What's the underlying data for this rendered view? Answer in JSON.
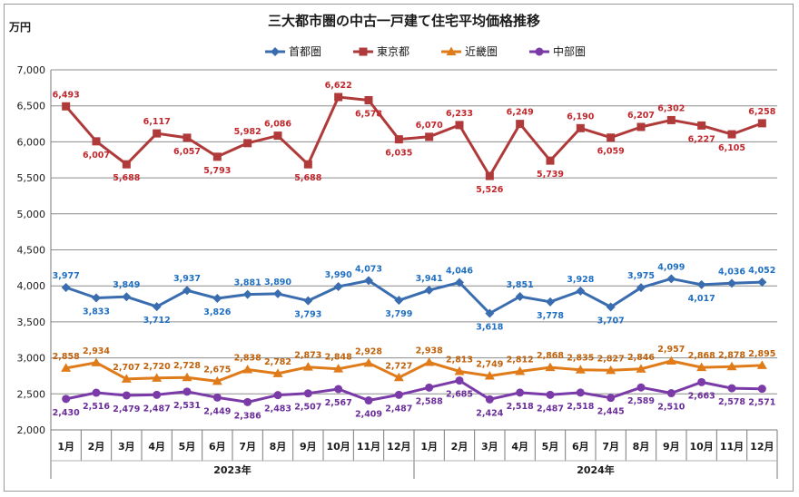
{
  "chart_data": {
    "type": "line",
    "title": "三大都市圏の中古一戸建て住宅平均価格推移",
    "ylabel": "万円",
    "ylim": [
      2000,
      7000
    ],
    "yticks": [
      "2,000",
      "2,500",
      "3,000",
      "3,500",
      "4,000",
      "4,500",
      "5,000",
      "5,500",
      "6,000",
      "6,500",
      "7,000"
    ],
    "categories": [
      "1月",
      "2月",
      "3月",
      "4月",
      "5月",
      "6月",
      "7月",
      "8月",
      "9月",
      "10月",
      "11月",
      "12月",
      "1月",
      "2月",
      "3月",
      "4月",
      "5月",
      "6月",
      "7月",
      "8月",
      "9月",
      "10月",
      "11月",
      "12月"
    ],
    "year_groups": [
      {
        "label": "2023年",
        "start": 0,
        "end": 11
      },
      {
        "label": "2024年",
        "start": 12,
        "end": 23
      }
    ],
    "legend_position": "top",
    "grid": "horizontal",
    "series": [
      {
        "name": "首都圏",
        "color": "#3a6db0",
        "label_color": "#1f6fc2",
        "marker": "diamond",
        "values": [
          3977,
          3833,
          3849,
          3712,
          3937,
          3826,
          3881,
          3890,
          3793,
          3990,
          4073,
          3799,
          3941,
          4046,
          3618,
          3851,
          3778,
          3928,
          3707,
          3975,
          4099,
          4017,
          4036,
          4052
        ],
        "labels": [
          "3,977",
          "3,833",
          "3,849",
          "3,712",
          "3,937",
          "3,826",
          "3,881",
          "3,890",
          "3,793",
          "3,990",
          "4,073",
          "3,799",
          "3,941",
          "4,046",
          "3,618",
          "3,851",
          "3,778",
          "3,928",
          "3,707",
          "3,975",
          "4,099",
          "4,017",
          "4,036",
          "4,052"
        ]
      },
      {
        "name": "東京都",
        "color": "#b03a3a",
        "label_color": "#c0282d",
        "marker": "square",
        "values": [
          6493,
          6007,
          5688,
          6117,
          6057,
          5793,
          5982,
          6086,
          5688,
          6622,
          6578,
          6035,
          6070,
          6233,
          5526,
          6249,
          5739,
          6190,
          6059,
          6207,
          6302,
          6227,
          6105,
          6258
        ],
        "labels": [
          "6,493",
          "6,007",
          "5,688",
          "6,117",
          "6,057",
          "5,793",
          "5,982",
          "6,086",
          "5,688",
          "6,622",
          "6,578",
          "6,035",
          "6,070",
          "6,233",
          "5,526",
          "6,249",
          "5,739",
          "6,190",
          "6,059",
          "6,207",
          "6,302",
          "6,227",
          "6,105",
          "6,258"
        ]
      },
      {
        "name": "近畿圏",
        "color": "#e07b1a",
        "label_color": "#c0620b",
        "marker": "triangle",
        "values": [
          2858,
          2934,
          2707,
          2720,
          2728,
          2675,
          2838,
          2782,
          2873,
          2848,
          2928,
          2727,
          2938,
          2813,
          2749,
          2812,
          2868,
          2835,
          2827,
          2846,
          2957,
          2868,
          2878,
          2895
        ],
        "labels": [
          "2,858",
          "2,934",
          "2,707",
          "2,720",
          "2,728",
          "2,675",
          "2,838",
          "2,782",
          "2,873",
          "2,848",
          "2,928",
          "2,727",
          "2,938",
          "2,813",
          "2,749",
          "2,812",
          "2,868",
          "2,835",
          "2,827",
          "2,846",
          "2,957",
          "2,868",
          "2,878",
          "2,895"
        ]
      },
      {
        "name": "中部圏",
        "color": "#7a3aa8",
        "label_color": "#6a2d9a",
        "marker": "circle",
        "values": [
          2430,
          2516,
          2479,
          2487,
          2531,
          2449,
          2386,
          2483,
          2507,
          2567,
          2409,
          2487,
          2588,
          2685,
          2424,
          2518,
          2487,
          2518,
          2445,
          2589,
          2510,
          2663,
          2578,
          2571
        ],
        "labels": [
          "2,430",
          "2,516",
          "2,479",
          "2,487",
          "2,531",
          "2,449",
          "2,386",
          "2,483",
          "2,507",
          "2,567",
          "2,409",
          "2,487",
          "2,588",
          "2,685",
          "2,424",
          "2,518",
          "2,487",
          "2,518",
          "2,445",
          "2,589",
          "2,510",
          "2,663",
          "2,578",
          "2,571"
        ]
      }
    ]
  }
}
